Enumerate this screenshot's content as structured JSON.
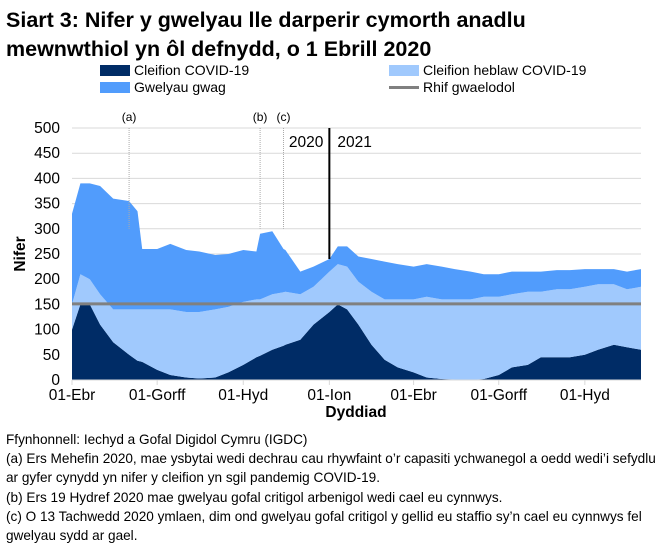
{
  "title_line1": "Siart 3: Nifer y gwelyau lle darperir cymorth anadlu",
  "title_line2": "mewnwthiol yn ôl defnydd, o 1 Ebrill 2020",
  "colors": {
    "covid": "#002c66",
    "non_covid": "#a0c9fd",
    "empty": "#519cfc",
    "baseline": "#808080"
  },
  "chart_data": {
    "type": "area",
    "stacked": true,
    "xlabel": "Dyddiad",
    "ylabel": "Nifer",
    "ylim": [
      0,
      500
    ],
    "yticks": [
      "0",
      "50",
      "100",
      "150",
      "200",
      "250",
      "300",
      "350",
      "400",
      "450",
      "500"
    ],
    "xticks": [
      {
        "date": "2020-04-01",
        "label": "01-Ebr"
      },
      {
        "date": "2020-07-01",
        "label": "01-Gorff"
      },
      {
        "date": "2020-10-01",
        "label": "01-Hyd"
      },
      {
        "date": "2021-01-01",
        "label": "01-Ion"
      },
      {
        "date": "2021-04-01",
        "label": "01-Ebr"
      },
      {
        "date": "2021-07-01",
        "label": "01-Gorff"
      },
      {
        "date": "2021-10-01",
        "label": "01-Hyd"
      }
    ],
    "xlim": [
      "2020-04-01",
      "2021-11-30"
    ],
    "grid": true,
    "legend_position": "top",
    "x": [
      "2020-04-01",
      "2020-04-10",
      "2020-04-20",
      "2020-05-01",
      "2020-05-15",
      "2020-06-01",
      "2020-06-10",
      "2020-06-15",
      "2020-07-01",
      "2020-07-15",
      "2020-08-01",
      "2020-08-15",
      "2020-09-01",
      "2020-09-15",
      "2020-10-01",
      "2020-10-15",
      "2020-10-19",
      "2020-11-01",
      "2020-11-13",
      "2020-11-15",
      "2020-12-01",
      "2020-12-15",
      "2021-01-01",
      "2021-01-10",
      "2021-01-20",
      "2021-02-01",
      "2021-02-15",
      "2021-03-01",
      "2021-03-15",
      "2021-04-01",
      "2021-04-15",
      "2021-05-01",
      "2021-05-15",
      "2021-06-01",
      "2021-06-15",
      "2021-07-01",
      "2021-07-15",
      "2021-08-01",
      "2021-08-15",
      "2021-09-01",
      "2021-09-15",
      "2021-10-01",
      "2021-10-15",
      "2021-11-01",
      "2021-11-15",
      "2021-11-30"
    ],
    "series": [
      {
        "name": "Cleifion COVID-19",
        "values": [
          100,
          150,
          150,
          110,
          75,
          50,
          38,
          36,
          20,
          10,
          5,
          3,
          5,
          15,
          30,
          45,
          48,
          60,
          68,
          70,
          80,
          110,
          135,
          150,
          140,
          110,
          70,
          40,
          25,
          15,
          5,
          2,
          1,
          0,
          2,
          10,
          25,
          30,
          45,
          45,
          45,
          50,
          60,
          70,
          65,
          60
        ]
      },
      {
        "name": "Cleifion heblaw COVID-19",
        "values": [
          50,
          60,
          50,
          60,
          65,
          90,
          102,
          104,
          120,
          130,
          130,
          132,
          135,
          130,
          125,
          115,
          112,
          110,
          106,
          105,
          90,
          75,
          80,
          80,
          85,
          85,
          105,
          120,
          135,
          145,
          160,
          158,
          159,
          160,
          163,
          155,
          145,
          145,
          130,
          135,
          135,
          135,
          130,
          120,
          115,
          125
        ]
      },
      {
        "name": "Gwelyau gwag",
        "values": [
          180,
          180,
          190,
          215,
          220,
          215,
          195,
          120,
          120,
          130,
          123,
          120,
          108,
          105,
          103,
          95,
          130,
          125,
          86,
          83,
          45,
          40,
          25,
          35,
          40,
          50,
          65,
          75,
          70,
          65,
          65,
          65,
          60,
          55,
          45,
          45,
          45,
          40,
          40,
          38,
          38,
          35,
          30,
          30,
          35,
          35
        ]
      }
    ],
    "baseline": {
      "name": "Rhif gwaelodol",
      "value": 151
    },
    "annotations": [
      {
        "label": "(a)",
        "date": "2020-06-01"
      },
      {
        "label": "(b)",
        "date": "2020-10-19"
      },
      {
        "label": "(c)",
        "date": "2020-11-13"
      }
    ],
    "year_divider": {
      "date": "2021-01-01",
      "left_label": "2020",
      "right_label": "2021"
    }
  },
  "footnotes": [
    "Ffynhonnell: Iechyd a Gofal Digidol Cymru (IGDC)",
    "(a) Ers Mehefin 2020, mae ysbytai wedi dechrau cau rhywfaint o’r capasiti ychwanegol a oedd wedi’i sefydlu ar gyfer cynydd yn nifer y cleifion yn sgil pandemig COVID-19.",
    "(b) Ers 19 Hydref 2020 mae gwelyau gofal critigol arbenigol wedi cael eu cynnwys.",
    "(c) O 13 Tachwedd 2020 ymlaen, dim ond gwelyau gofal critigol y gellid eu staffio sy’n cael eu cynnwys fel gwelyau sydd ar gael."
  ]
}
